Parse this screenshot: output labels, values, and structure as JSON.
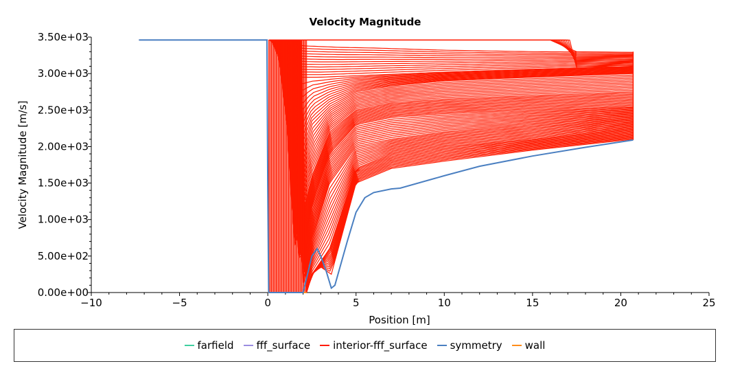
{
  "chart_data": {
    "type": "line",
    "title": "Velocity Magnitude",
    "xlabel": "Position [m]",
    "ylabel": "Velocity Magnitude [m/s]",
    "xlim": [
      -10,
      25
    ],
    "ylim": [
      0,
      3500
    ],
    "x_ticks": [
      -10,
      -5,
      0,
      5,
      10,
      15,
      20,
      25
    ],
    "x_tick_labels": [
      "−10",
      "−5",
      "0",
      "5",
      "10",
      "15",
      "20",
      "25"
    ],
    "y_ticks": [
      0,
      500,
      1000,
      1500,
      2000,
      2500,
      3000,
      3500
    ],
    "y_tick_labels": [
      "0.00e+00",
      "5.00e+02",
      "1.00e+03",
      "1.50e+03",
      "2.00e+03",
      "2.50e+03",
      "3.00e+03",
      "3.50e+03"
    ],
    "grid": false,
    "legend_position": "bottom",
    "series": [
      {
        "name": "farfield",
        "color": "#3ecfa0",
        "x": [],
        "y": []
      },
      {
        "name": "fff_surface",
        "color": "#9a8ce0",
        "x": [],
        "y": []
      },
      {
        "name": "interior-fff_surface",
        "color": "#ff1a00",
        "representative_curves": [
          {
            "x": [
              0.05,
              0.3,
              1,
              2,
              4,
              6,
              10,
              15,
              20.7
            ],
            "y": [
              3460,
              3450,
              3420,
              3380,
              3360,
              3350,
              3320,
              3300,
              3290
            ]
          },
          {
            "x": [
              0.2,
              1,
              2,
              3,
              4,
              6,
              10,
              15,
              20.7
            ],
            "y": [
              3460,
              3000,
              2950,
              2950,
              2960,
              2980,
              3020,
              3060,
              3100
            ]
          },
          {
            "x": [
              0.5,
              1.5,
              2.5,
              3.5,
              5,
              7,
              10,
              15,
              20.7
            ],
            "y": [
              3460,
              1500,
              2300,
              2550,
              2750,
              2830,
              2900,
              2950,
              3000
            ]
          },
          {
            "x": [
              0.8,
              1.5,
              2.5,
              3.5,
              5,
              7,
              10,
              15,
              20.7
            ],
            "y": [
              3460,
              600,
              1600,
              2200,
              2500,
              2600,
              2650,
              2700,
              2750
            ]
          },
          {
            "x": [
              1.0,
              1.8,
              2.5,
              3.5,
              5,
              7,
              10,
              15,
              20.7
            ],
            "y": [
              3460,
              300,
              1200,
              1900,
              2300,
              2400,
              2450,
              2500,
              2550
            ]
          },
          {
            "x": [
              1.3,
              2.0,
              2.5,
              3.5,
              5,
              7,
              10,
              15,
              20.7
            ],
            "y": [
              3460,
              100,
              700,
              1500,
              2000,
              2100,
              2200,
              2300,
              2400
            ]
          },
          {
            "x": [
              1.6,
              2.2,
              2.5,
              3.5,
              5,
              7,
              10,
              15,
              20.7
            ],
            "y": [
              3460,
              0,
              250,
              600,
              1700,
              1900,
              2000,
              2100,
              2250
            ]
          },
          {
            "x": [
              1.9,
              2.2,
              2.5,
              3.0,
              3.6,
              5,
              7,
              10,
              15,
              20.7
            ],
            "y": [
              3460,
              0,
              250,
              350,
              250,
              1500,
              1700,
              1800,
              1950,
              2100
            ]
          }
        ]
      },
      {
        "name": "symmetry",
        "color": "#4a7fc1",
        "x": [
          -7.3,
          -0.05,
          0,
          0.05,
          1,
          2,
          2.5,
          2.8,
          3.0,
          3.3,
          3.6,
          3.8,
          4.5,
          5,
          5.5,
          6,
          7,
          7.5,
          10,
          12,
          15,
          18,
          20.7
        ],
        "y": [
          3460,
          3460,
          1500,
          0,
          0,
          0,
          500,
          600,
          500,
          300,
          60,
          100,
          700,
          1100,
          1300,
          1370,
          1420,
          1430,
          1600,
          1730,
          1870,
          1990,
          2090
        ]
      },
      {
        "name": "wall",
        "color": "#ff8c1a",
        "x": [
          0,
          2.2
        ],
        "y": [
          0,
          0
        ]
      }
    ]
  }
}
